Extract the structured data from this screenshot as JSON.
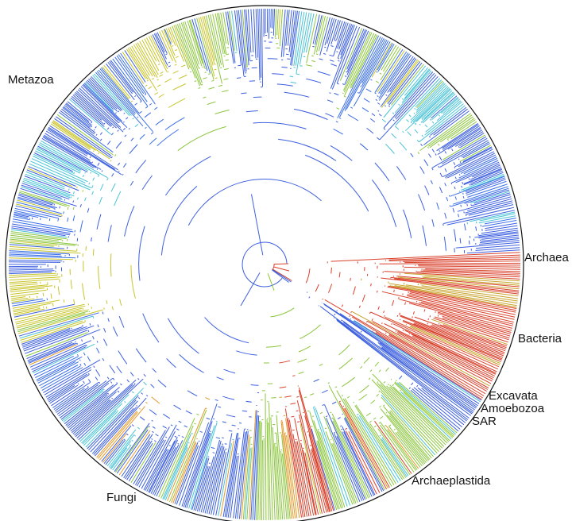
{
  "labels": {
    "metazoa": "Metazoa",
    "archaea": "Archaea",
    "bacteria": "Bacteria",
    "excavata": "Excavata",
    "amoebozoa": "Amoebozoa",
    "sar": "SAR",
    "archaeplastida": "Archaeplastida",
    "fungi": "Fungi"
  },
  "clades": [
    {
      "name": "Archaea",
      "palette": [
        "#d9412b",
        "#e0552f"
      ]
    },
    {
      "name": "Bacteria",
      "palette": [
        "#d9412b",
        "#d9412b",
        "#e3502e",
        "#c8a22a"
      ]
    },
    {
      "name": "Excavata",
      "palette": [
        "#d9412b",
        "#8cc63e"
      ]
    },
    {
      "name": "Amoebozoa",
      "palette": [
        "#3c5fe0",
        "#49c3d6"
      ]
    },
    {
      "name": "SAR",
      "palette": [
        "#3c5fe0",
        "#49c3d6",
        "#8cc63e",
        "#e3a02a"
      ]
    },
    {
      "name": "Archaeplastida",
      "palette": [
        "#8cc63e",
        "#49c3d6",
        "#d9412b",
        "#e39a2a",
        "#3c5fe0",
        "#b7d43a"
      ]
    },
    {
      "name": "Fungi",
      "palette": [
        "#3c5fe0",
        "#49c3d6",
        "#8cc63e",
        "#e39a2a",
        "#3a6fe8"
      ]
    },
    {
      "name": "Metazoa",
      "palette": [
        "#3c5fe0",
        "#3c5fe0",
        "#3a6fe8",
        "#49c3d6",
        "#8cc63e",
        "#c8c42a"
      ]
    }
  ]
}
